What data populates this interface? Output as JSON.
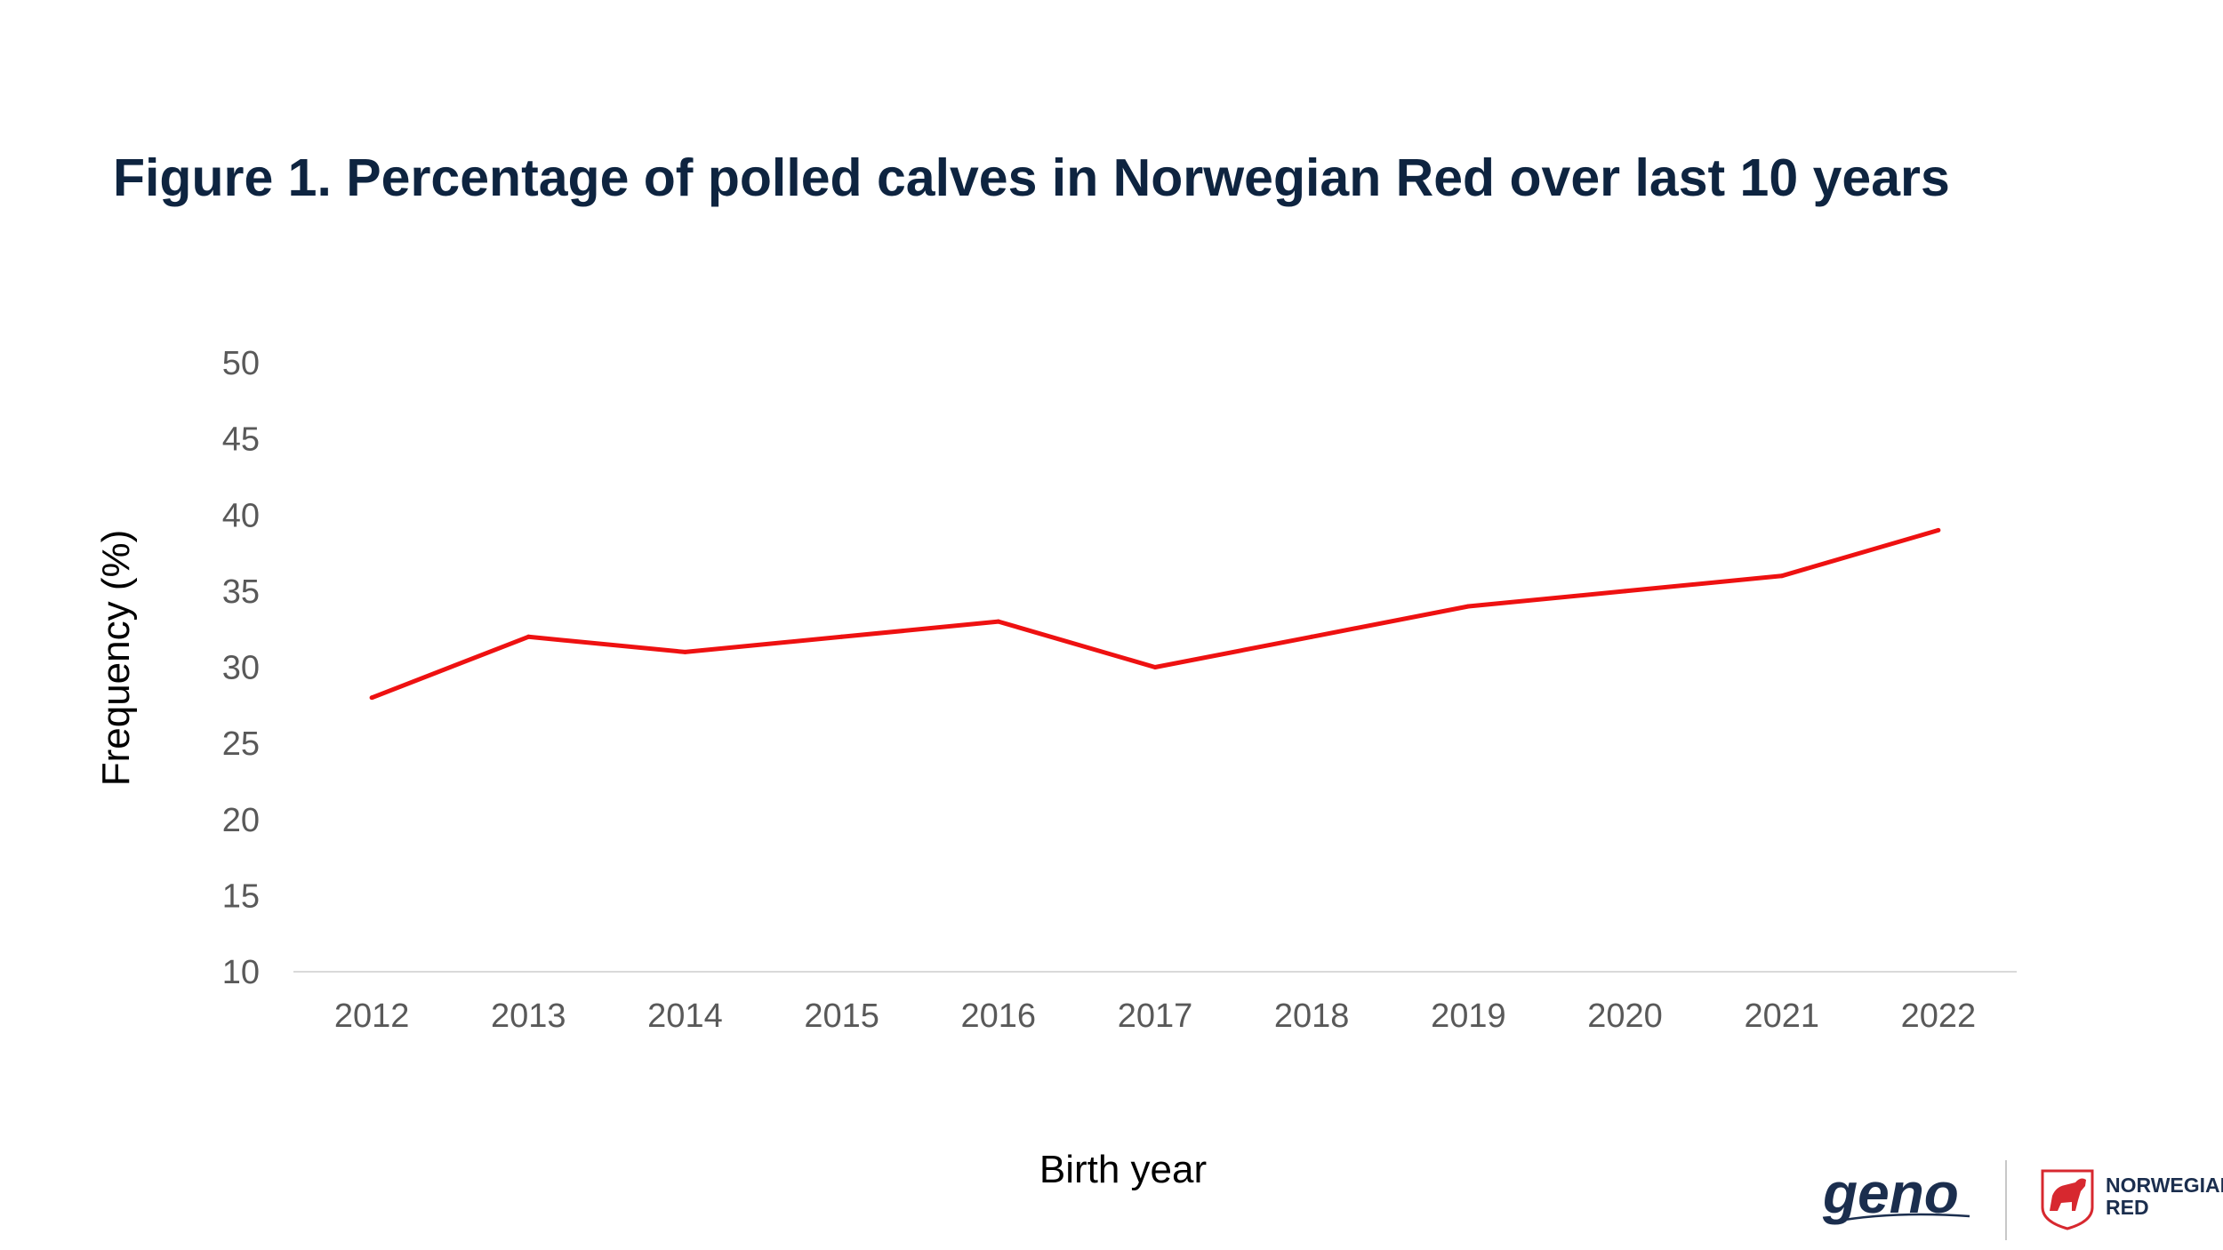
{
  "title": "Figure 1. Percentage of polled calves in Norwegian Red over last 10 years",
  "brand": {
    "geno_logo_text": "geno",
    "norwegian_red_line1": "NORWEGIAN",
    "norwegian_red_line2": "RED",
    "colors": {
      "navy": "#1b2e4e",
      "red": "#d7282f"
    }
  },
  "chart_data": {
    "type": "line",
    "xlabel": "Birth year",
    "ylabel": "Frequency (%)",
    "ylim": [
      10,
      50
    ],
    "yticks": [
      10,
      15,
      20,
      25,
      30,
      35,
      40,
      45,
      50
    ],
    "grid": false,
    "line_color": "#ee1111",
    "categories": [
      "2012",
      "2013",
      "2014",
      "2015",
      "2016",
      "2017",
      "2018",
      "2019",
      "2020",
      "2021",
      "2022"
    ],
    "series": [
      {
        "values": [
          28,
          32,
          31,
          32,
          33,
          30,
          32,
          34,
          35,
          36,
          39
        ]
      }
    ]
  }
}
